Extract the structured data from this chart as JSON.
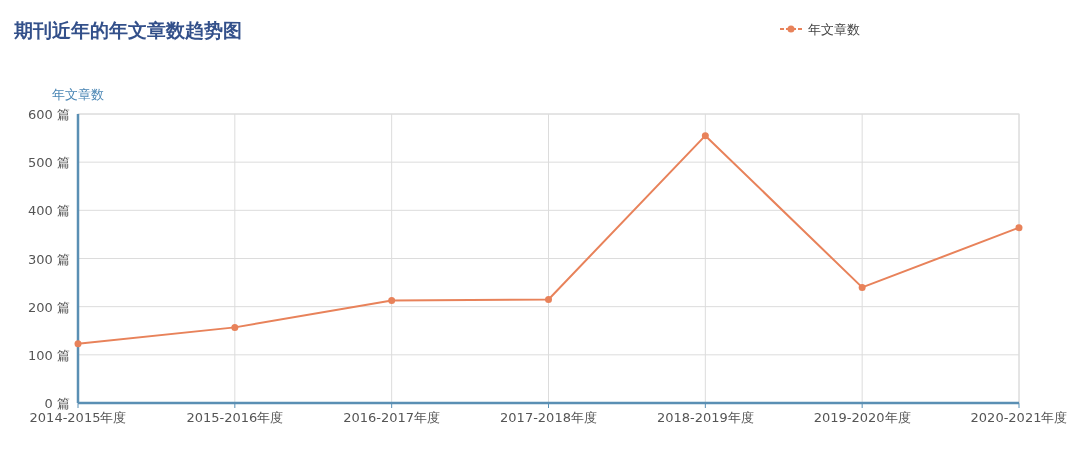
{
  "chart_data": {
    "type": "line",
    "title": "期刊近年的年文章数趋势图",
    "ylabel": "年文章数",
    "categories": [
      "2014-2015年度",
      "2015-2016年度",
      "2016-2017年度",
      "2017-2018年度",
      "2018-2019年度",
      "2019-2020年度",
      "2020-2021年度"
    ],
    "series": [
      {
        "name": "年文章数",
        "color": "#e8825a",
        "values": [
          123,
          157,
          213,
          215,
          555,
          240,
          364
        ]
      }
    ],
    "ylim": [
      0,
      600
    ],
    "yticks": [
      {
        "value": 0,
        "label": "0 篇"
      },
      {
        "value": 100,
        "label": "100 篇"
      },
      {
        "value": 200,
        "label": "200 篇"
      },
      {
        "value": 300,
        "label": "300 篇"
      },
      {
        "value": 400,
        "label": "400 篇"
      },
      {
        "value": 500,
        "label": "500 篇"
      },
      {
        "value": 600,
        "label": "600 篇"
      }
    ],
    "grid": true,
    "legend": "top right",
    "marker": "circle",
    "line_style": "solid"
  }
}
